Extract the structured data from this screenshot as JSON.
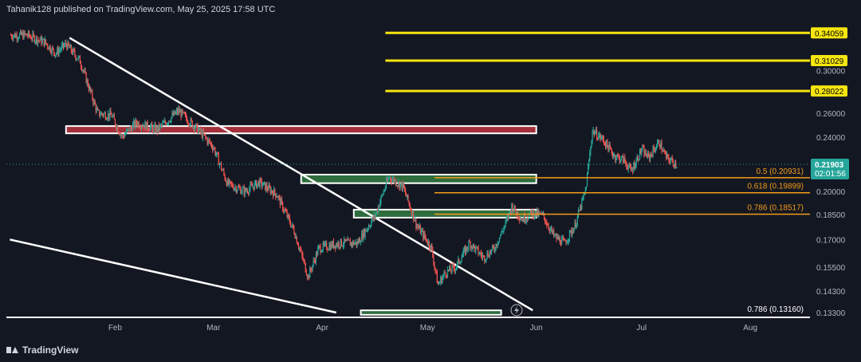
{
  "header": {
    "text": "Tahanik128 published on TradingView.com, May 25, 2025 17:58 UTC"
  },
  "footer": {
    "brand": "TradingView"
  },
  "colors": {
    "background": "#131722",
    "axis_text": "#b2b5be",
    "candle_up": "#26a69a",
    "candle_down": "#ef5350",
    "yellow": "#f5e50f",
    "orange": "#f59c1a",
    "red_zone": "#a3303b",
    "green_zone": "#2f6d3e",
    "white": "#ffffff"
  },
  "chart_data": {
    "type": "candlestick",
    "x_axis": {
      "ticks": [
        "Feb",
        "Mar",
        "Apr",
        "May",
        "Jun",
        "Jul",
        "Aug"
      ]
    },
    "y_axis": {
      "ticks": [
        "0.30000",
        "0.26000",
        "0.24000",
        "0.20000",
        "0.18500",
        "0.17000",
        "0.15500",
        "0.14300",
        "0.13300"
      ],
      "scale": "log"
    },
    "price_path": [
      [
        "2025-01-02",
        0.338
      ],
      [
        "2025-01-07",
        0.338
      ],
      [
        "2025-01-12",
        0.33
      ],
      [
        "2025-01-15",
        0.318
      ],
      [
        "2025-01-18",
        0.328
      ],
      [
        "2025-01-22",
        0.31
      ],
      [
        "2025-01-27",
        0.26
      ],
      [
        "2025-01-31",
        0.258
      ],
      [
        "2025-02-03",
        0.24
      ],
      [
        "2025-02-07",
        0.252
      ],
      [
        "2025-02-13",
        0.246
      ],
      [
        "2025-02-19",
        0.262
      ],
      [
        "2025-02-24",
        0.248
      ],
      [
        "2025-03-01",
        0.232
      ],
      [
        "2025-03-05",
        0.205
      ],
      [
        "2025-03-10",
        0.2
      ],
      [
        "2025-03-14",
        0.206
      ],
      [
        "2025-03-19",
        0.198
      ],
      [
        "2025-03-24",
        0.175
      ],
      [
        "2025-03-28",
        0.15
      ],
      [
        "2025-03-31",
        0.165
      ],
      [
        "2025-04-06",
        0.168
      ],
      [
        "2025-04-11",
        0.168
      ],
      [
        "2025-04-16",
        0.184
      ],
      [
        "2025-04-20",
        0.21
      ],
      [
        "2025-04-24",
        0.203
      ],
      [
        "2025-04-28",
        0.178
      ],
      [
        "2025-05-02",
        0.166
      ],
      [
        "2025-05-04",
        0.146
      ],
      [
        "2025-05-06",
        0.152
      ],
      [
        "2025-05-09",
        0.155
      ],
      [
        "2025-05-13",
        0.168
      ],
      [
        "2025-05-17",
        0.16
      ],
      [
        "2025-05-20",
        0.165
      ],
      [
        "2025-05-23",
        0.178
      ],
      [
        "2025-05-25",
        0.19
      ],
      [
        "2025-05-28",
        0.182
      ],
      [
        "2025-05-31",
        0.186
      ],
      [
        "2025-06-03",
        0.184
      ],
      [
        "2025-06-06",
        0.172
      ],
      [
        "2025-06-09",
        0.168
      ],
      [
        "2025-06-12",
        0.178
      ],
      [
        "2025-06-15",
        0.2
      ],
      [
        "2025-06-17",
        0.245
      ],
      [
        "2025-06-20",
        0.238
      ],
      [
        "2025-06-23",
        0.226
      ],
      [
        "2025-06-26",
        0.222
      ],
      [
        "2025-06-28",
        0.214
      ],
      [
        "2025-07-01",
        0.23
      ],
      [
        "2025-07-03",
        0.224
      ],
      [
        "2025-07-06",
        0.236
      ],
      [
        "2025-07-08",
        0.224
      ],
      [
        "2025-07-11",
        0.219
      ]
    ],
    "current_price": {
      "value": "0.21903",
      "countdown": "02:01:56",
      "y": 0.21903
    },
    "horizontal_levels": [
      {
        "label": "0.34059",
        "value": 0.34059,
        "color": "#f5e50f",
        "x_start": "2025-04-19"
      },
      {
        "label": "0.31029",
        "value": 0.31029,
        "color": "#f5e50f",
        "x_start": "2025-04-19"
      },
      {
        "label": "0.28022",
        "value": 0.28022,
        "color": "#f5e50f",
        "x_start": "2025-04-19"
      }
    ],
    "fib_levels": [
      {
        "label": "0.5 (0.20931)",
        "value": 0.20931
      },
      {
        "label": "0.618 (0.19899)",
        "value": 0.19899
      },
      {
        "label": "0.786 (0.18517)",
        "value": 0.18517
      },
      {
        "label": "0.786 (0.13160)",
        "value": 0.1316
      }
    ],
    "zones": [
      {
        "type": "resistance",
        "color": "#a3303b",
        "x_start": "2025-01-18",
        "x_end": "2025-06-01",
        "y_top": 0.249,
        "y_bottom": 0.243
      },
      {
        "type": "support",
        "color": "#2f6d3e",
        "x_start": "2025-03-26",
        "x_end": "2025-06-01",
        "y_top": 0.2115,
        "y_bottom": 0.2055
      },
      {
        "type": "support",
        "color": "#2f6d3e",
        "x_start": "2025-04-10",
        "x_end": "2025-06-01",
        "y_top": 0.188,
        "y_bottom": 0.183
      },
      {
        "type": "support",
        "color": "#2f6d3e",
        "x_start": "2025-04-12",
        "x_end": "2025-05-22",
        "y_top": 0.134,
        "y_bottom": 0.132
      }
    ],
    "trendlines": [
      {
        "from": [
          "2025-01-19",
          0.335
        ],
        "to": [
          "2025-05-31",
          0.134
        ]
      },
      {
        "from": [
          "2025-01-02",
          0.17
        ],
        "to": [
          "2025-04-05",
          0.133
        ]
      }
    ]
  }
}
